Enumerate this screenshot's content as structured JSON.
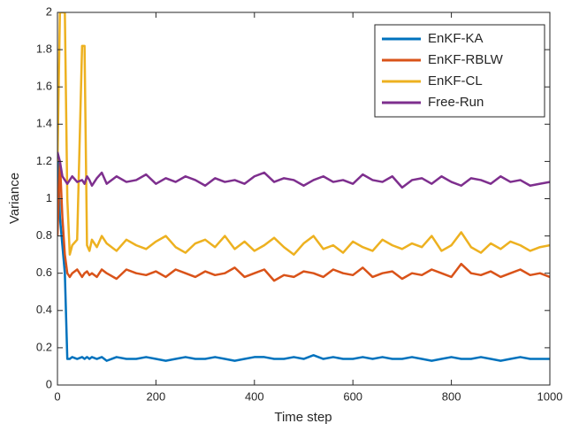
{
  "chart_data": {
    "type": "line",
    "xlabel": "Time step",
    "ylabel": "Variance",
    "x": [
      0,
      5,
      10,
      15,
      20,
      25,
      30,
      40,
      50,
      55,
      60,
      65,
      70,
      80,
      90,
      100,
      120,
      140,
      160,
      180,
      200,
      220,
      240,
      260,
      280,
      300,
      320,
      340,
      360,
      380,
      400,
      420,
      440,
      460,
      480,
      500,
      520,
      540,
      560,
      580,
      600,
      620,
      640,
      660,
      680,
      700,
      720,
      740,
      760,
      780,
      800,
      820,
      840,
      860,
      880,
      900,
      920,
      940,
      960,
      980,
      1000
    ],
    "series": [
      {
        "name": "EnKF-KA",
        "color": "#0072BD",
        "values": [
          1.25,
          0.9,
          0.75,
          0.6,
          0.14,
          0.14,
          0.15,
          0.14,
          0.15,
          0.14,
          0.15,
          0.14,
          0.15,
          0.14,
          0.15,
          0.13,
          0.15,
          0.14,
          0.14,
          0.15,
          0.14,
          0.13,
          0.14,
          0.15,
          0.14,
          0.14,
          0.15,
          0.14,
          0.13,
          0.14,
          0.15,
          0.15,
          0.14,
          0.14,
          0.15,
          0.14,
          0.16,
          0.14,
          0.15,
          0.14,
          0.14,
          0.15,
          0.14,
          0.15,
          0.14,
          0.14,
          0.15,
          0.14,
          0.13,
          0.14,
          0.15,
          0.14,
          0.14,
          0.15,
          0.14,
          0.13,
          0.14,
          0.15,
          0.14,
          0.14,
          0.14
        ]
      },
      {
        "name": "EnKF-RBLW",
        "color": "#D95319",
        "values": [
          0.8,
          1.2,
          0.9,
          0.7,
          0.6,
          0.58,
          0.6,
          0.62,
          0.58,
          0.6,
          0.61,
          0.59,
          0.6,
          0.58,
          0.62,
          0.6,
          0.57,
          0.62,
          0.6,
          0.59,
          0.61,
          0.58,
          0.62,
          0.6,
          0.58,
          0.61,
          0.59,
          0.6,
          0.63,
          0.58,
          0.6,
          0.62,
          0.56,
          0.59,
          0.58,
          0.61,
          0.6,
          0.58,
          0.62,
          0.6,
          0.59,
          0.63,
          0.58,
          0.6,
          0.61,
          0.57,
          0.6,
          0.59,
          0.62,
          0.6,
          0.58,
          0.65,
          0.6,
          0.59,
          0.61,
          0.58,
          0.6,
          0.62,
          0.59,
          0.6,
          0.58
        ]
      },
      {
        "name": "EnKF-CL",
        "color": "#EDB120",
        "values": [
          1.2,
          2,
          2,
          2,
          1.0,
          0.7,
          0.75,
          0.78,
          1.82,
          1.82,
          0.75,
          0.72,
          0.78,
          0.74,
          0.8,
          0.76,
          0.72,
          0.78,
          0.75,
          0.73,
          0.77,
          0.8,
          0.74,
          0.71,
          0.76,
          0.78,
          0.74,
          0.8,
          0.73,
          0.77,
          0.72,
          0.75,
          0.79,
          0.74,
          0.7,
          0.76,
          0.8,
          0.73,
          0.75,
          0.71,
          0.77,
          0.74,
          0.72,
          0.78,
          0.75,
          0.73,
          0.76,
          0.74,
          0.8,
          0.72,
          0.75,
          0.82,
          0.74,
          0.71,
          0.76,
          0.73,
          0.77,
          0.75,
          0.72,
          0.74,
          0.75
        ]
      },
      {
        "name": "Free-Run",
        "color": "#7E2F8E",
        "values": [
          1.25,
          1.2,
          1.12,
          1.1,
          1.08,
          1.1,
          1.12,
          1.09,
          1.1,
          1.08,
          1.12,
          1.1,
          1.07,
          1.11,
          1.14,
          1.08,
          1.12,
          1.09,
          1.1,
          1.13,
          1.08,
          1.11,
          1.09,
          1.12,
          1.1,
          1.07,
          1.11,
          1.09,
          1.1,
          1.08,
          1.12,
          1.14,
          1.09,
          1.11,
          1.1,
          1.07,
          1.1,
          1.12,
          1.09,
          1.1,
          1.08,
          1.13,
          1.1,
          1.09,
          1.12,
          1.06,
          1.1,
          1.11,
          1.08,
          1.12,
          1.09,
          1.07,
          1.11,
          1.1,
          1.08,
          1.12,
          1.09,
          1.1,
          1.07,
          1.08,
          1.09
        ]
      }
    ],
    "xlim": [
      0,
      1000
    ],
    "xticks": [
      0,
      200,
      400,
      600,
      800,
      1000
    ],
    "ylim": [
      0,
      2
    ],
    "yticks": [
      0,
      0.2,
      0.4,
      0.6,
      0.8,
      1,
      1.2,
      1.4,
      1.6,
      1.8,
      2
    ],
    "grid": false,
    "legend": "northeast"
  }
}
